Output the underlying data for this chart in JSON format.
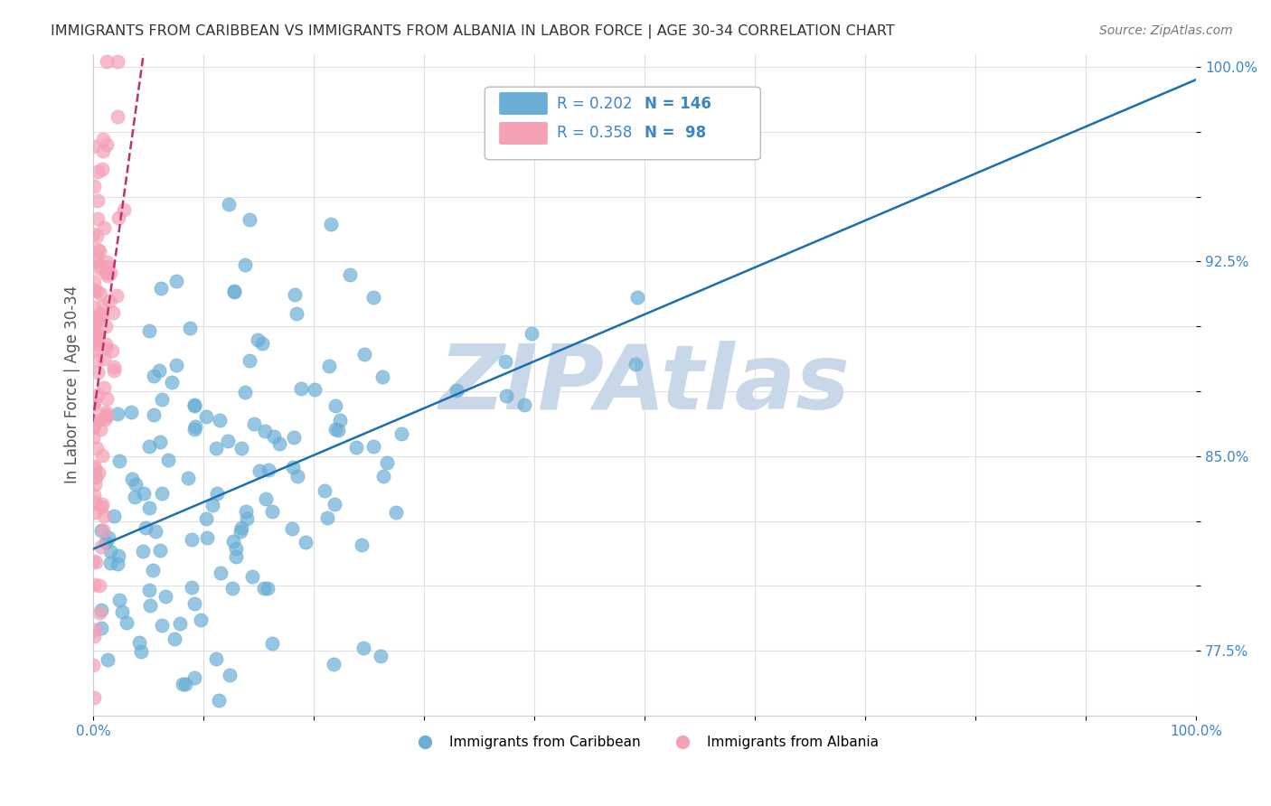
{
  "title": "IMMIGRANTS FROM CARIBBEAN VS IMMIGRANTS FROM ALBANIA IN LABOR FORCE | AGE 30-34 CORRELATION CHART",
  "source": "Source: ZipAtlas.com",
  "xlabel": "",
  "ylabel": "In Labor Force | Age 30-34",
  "xlim": [
    0.0,
    1.0
  ],
  "ylim": [
    0.75,
    1.005
  ],
  "yticks": [
    0.775,
    0.8,
    0.825,
    0.85,
    0.875,
    0.9,
    0.925,
    0.95,
    0.975,
    1.0
  ],
  "ytick_labels": [
    "77.5%",
    "",
    "",
    "85.0%",
    "",
    "",
    "92.5%",
    "",
    "",
    "100.0%"
  ],
  "xtick_labels": [
    "0.0%",
    "",
    "",
    "",
    "",
    "",
    "",
    "",
    "",
    "",
    "100.0%"
  ],
  "caribbean_R": 0.202,
  "caribbean_N": 146,
  "albania_R": 0.358,
  "albania_N": 98,
  "blue_color": "#6aaed6",
  "pink_color": "#f4a0b5",
  "blue_line_color": "#1a6faf",
  "pink_line_color": "#c0306a",
  "watermark": "ZIPAtlas",
  "watermark_color": "#c8d8e8",
  "legend_label_caribbean": "Immigrants from Caribbean",
  "legend_label_albania": "Immigrants from Albania",
  "background_color": "#ffffff",
  "grid_color": "#e0e0e0"
}
